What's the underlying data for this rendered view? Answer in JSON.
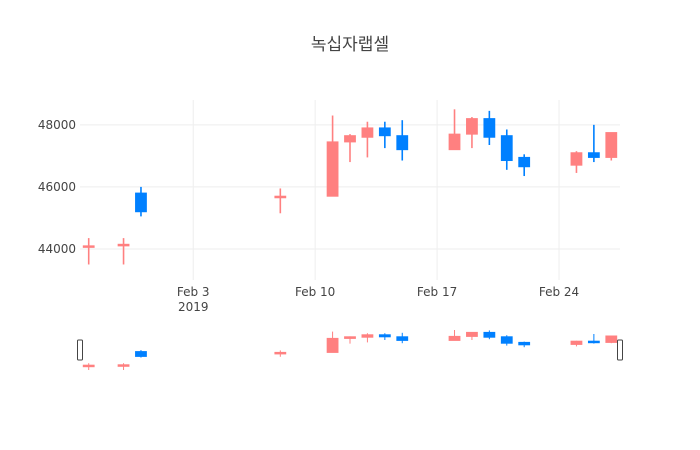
{
  "chart_data": {
    "type": "candlestick",
    "title": "녹십자랩셀",
    "xlabel": "",
    "ylabel": "",
    "x_tick_labels": [
      "Feb 3",
      "Feb 10",
      "Feb 17",
      "Feb 24"
    ],
    "x_tick_year": "2019",
    "x_tick_dates": [
      "2019-02-03",
      "2019-02-10",
      "2019-02-17",
      "2019-02-24"
    ],
    "y_ticks": [
      44000,
      46000,
      48000
    ],
    "ylim": [
      43000,
      48800
    ],
    "xlim": [
      "2019-01-28",
      "2019-02-27"
    ],
    "grid": true,
    "legend": "none",
    "rangeslider": true,
    "increasing_color": "#ff8080",
    "decreasing_color": "#0080ff",
    "candles": [
      {
        "date": "2019-01-28",
        "open": 44100,
        "high": 44350,
        "low": 43500,
        "close": 44100
      },
      {
        "date": "2019-01-30",
        "open": 44100,
        "high": 44350,
        "low": 43500,
        "close": 44150
      },
      {
        "date": "2019-01-31",
        "open": 45800,
        "high": 46000,
        "low": 45050,
        "close": 45200
      },
      {
        "date": "2019-02-08",
        "open": 45650,
        "high": 45950,
        "low": 45150,
        "close": 45700
      },
      {
        "date": "2019-02-11",
        "open": 45700,
        "high": 48300,
        "low": 45700,
        "close": 47450
      },
      {
        "date": "2019-02-12",
        "open": 47450,
        "high": 47700,
        "low": 46800,
        "close": 47650
      },
      {
        "date": "2019-02-13",
        "open": 47600,
        "high": 48100,
        "low": 46950,
        "close": 47900
      },
      {
        "date": "2019-02-14",
        "open": 47900,
        "high": 48100,
        "low": 47250,
        "close": 47650
      },
      {
        "date": "2019-02-15",
        "open": 47650,
        "high": 48150,
        "low": 46850,
        "close": 47200
      },
      {
        "date": "2019-02-18",
        "open": 47200,
        "high": 48500,
        "low": 47200,
        "close": 47700
      },
      {
        "date": "2019-02-19",
        "open": 47700,
        "high": 48250,
        "low": 47250,
        "close": 48200
      },
      {
        "date": "2019-02-20",
        "open": 48200,
        "high": 48450,
        "low": 47350,
        "close": 47600
      },
      {
        "date": "2019-02-21",
        "open": 47650,
        "high": 47850,
        "low": 46550,
        "close": 46850
      },
      {
        "date": "2019-02-22",
        "open": 46950,
        "high": 47050,
        "low": 46350,
        "close": 46650
      },
      {
        "date": "2019-02-25",
        "open": 46700,
        "high": 47150,
        "low": 46450,
        "close": 47100
      },
      {
        "date": "2019-02-26",
        "open": 47100,
        "high": 48000,
        "low": 46800,
        "close": 46950
      },
      {
        "date": "2019-02-27",
        "open": 46950,
        "high": 47750,
        "low": 46850,
        "close": 47750
      }
    ]
  }
}
